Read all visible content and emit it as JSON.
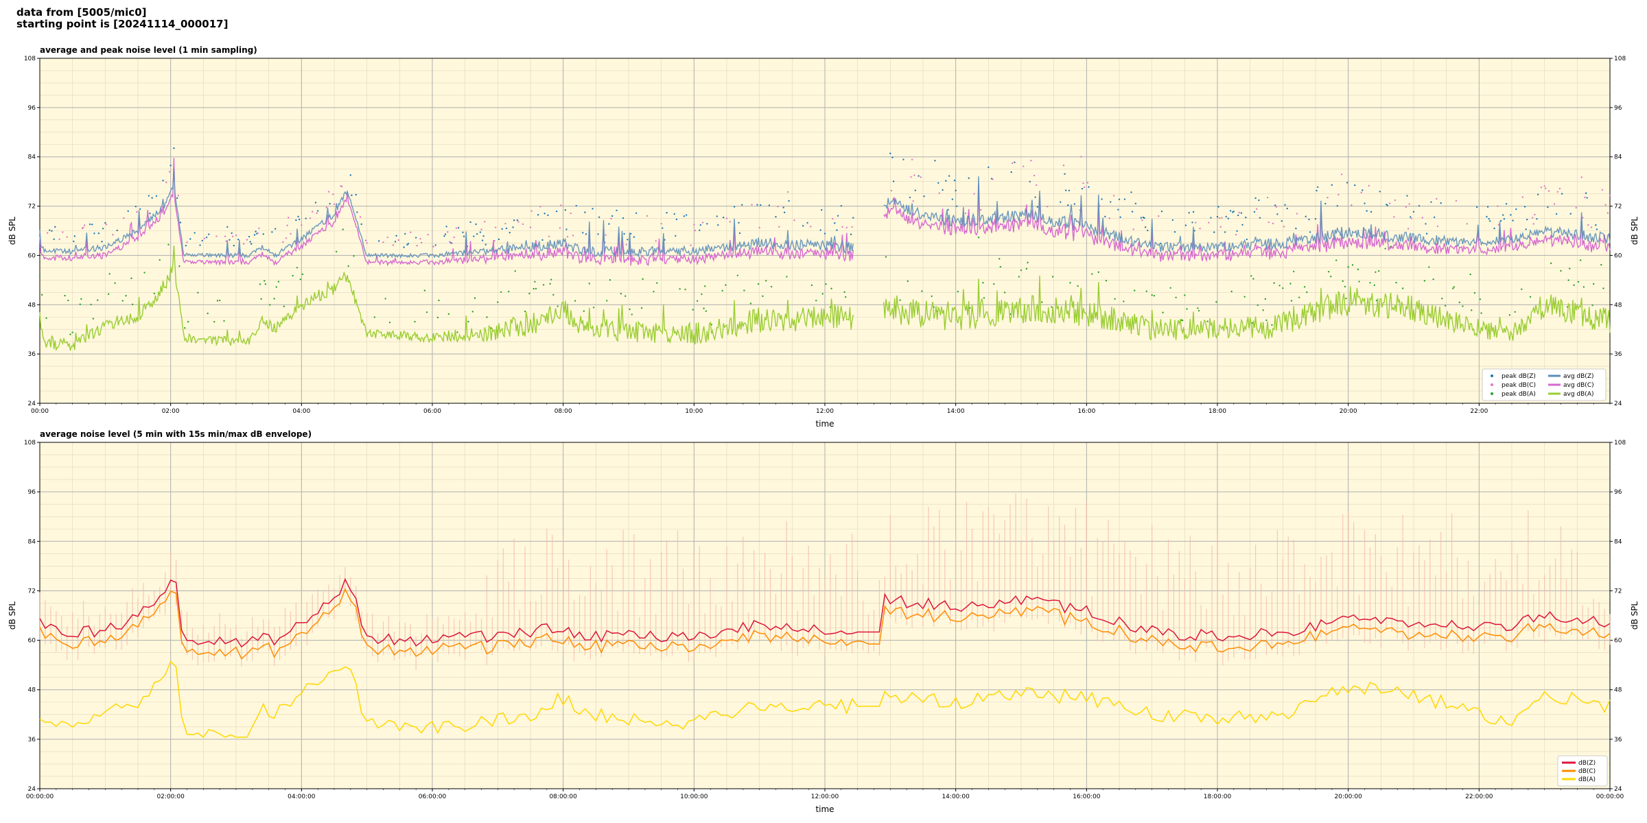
{
  "header": {
    "line1": "data from [5005/mic0]",
    "line2": "starting point is [20241114_000017]"
  },
  "chart_data": [
    {
      "type": "scatter+line",
      "title": "average and peak noise level (1 min sampling)",
      "xlabel": "time",
      "ylabel": "dB SPL",
      "ylim": [
        24,
        108
      ],
      "yticks": [
        24,
        36,
        48,
        60,
        72,
        84,
        96,
        108
      ],
      "xrange_hours": [
        0,
        24
      ],
      "xticks": [
        "00:00",
        "02:00",
        "04:00",
        "06:00",
        "08:00",
        "10:00",
        "12:00",
        "14:00",
        "16:00",
        "18:00",
        "20:00",
        "22:00"
      ],
      "grid": true,
      "legend_position": "lower-right",
      "colors": {
        "peak_z": "#1f77b4",
        "peak_c": "#e377c2",
        "peak_a": "#2ca02c",
        "avg_z": "#5b8db8",
        "avg_c": "#d669d0",
        "avg_a": "#9acd32",
        "background": "#fff8dc"
      },
      "legend": [
        "peak dB(Z)",
        "peak dB(C)",
        "peak dB(A)",
        "avg dB(Z)",
        "avg dB(C)",
        "avg dB(A)"
      ],
      "gap_hours": [
        12.45,
        12.9
      ],
      "profile": {
        "hours": [
          0.0,
          0.1,
          0.5,
          1.0,
          1.5,
          1.9,
          2.05,
          2.2,
          3.0,
          3.2,
          3.4,
          3.6,
          4.0,
          4.5,
          4.7,
          5.0,
          6.0,
          6.8,
          7.5,
          8.0,
          8.3,
          10.0,
          11.0,
          12.4,
          12.9,
          14.0,
          15.0,
          16.0,
          17.0,
          18.0,
          19.0,
          19.5,
          20.0,
          21.0,
          22.0,
          22.5,
          23.0,
          24.0
        ],
        "avg_z": [
          62,
          61,
          61,
          62,
          66,
          72,
          77,
          60,
          60,
          60,
          62,
          60,
          64,
          70,
          76,
          60,
          60,
          61,
          62,
          63,
          61,
          61,
          63,
          62,
          73,
          68,
          70,
          67,
          62,
          62,
          63,
          64,
          66,
          64,
          63,
          64,
          66,
          64
        ],
        "avg_a": [
          42,
          39,
          38,
          43,
          45,
          52,
          58,
          40,
          39,
          39,
          44,
          42,
          48,
          52,
          55,
          41,
          40,
          41,
          43,
          47,
          42,
          41,
          44,
          45,
          47,
          45,
          47,
          46,
          42,
          42,
          43,
          46,
          49,
          47,
          42,
          41,
          48,
          44
        ],
        "noise": [
          0.35,
          0.35,
          0.35,
          0.35,
          0.35,
          0.35,
          0.35,
          0.25,
          0.25,
          0.25,
          0.25,
          0.35,
          0.35,
          0.35,
          0.35,
          0.25,
          0.25,
          0.45,
          0.6,
          0.6,
          0.6,
          0.6,
          0.7,
          0.7,
          0.8,
          0.8,
          0.8,
          0.75,
          0.6,
          0.6,
          0.7,
          0.7,
          0.8,
          0.7,
          0.5,
          0.5,
          0.7,
          0.7
        ]
      }
    },
    {
      "type": "line",
      "title": "average noise level (5 min with 15s min/max dB envelope)",
      "xlabel": "time",
      "ylabel": "dB SPL",
      "ylim": [
        24,
        108
      ],
      "yticks": [
        24,
        36,
        48,
        60,
        72,
        84,
        96,
        108
      ],
      "xrange_hours": [
        0,
        24
      ],
      "xticks": [
        "00:00:00",
        "02:00:00",
        "04:00:00",
        "06:00:00",
        "08:00:00",
        "10:00:00",
        "12:00:00",
        "14:00:00",
        "16:00:00",
        "18:00:00",
        "20:00:00",
        "22:00:00",
        "00:00:00"
      ],
      "grid": true,
      "legend_position": "lower-right",
      "colors": {
        "z": "#dc143c",
        "c": "#ff8c00",
        "a": "#ffd700",
        "envelope": "#f4b8a8",
        "background": "#fff8dc"
      },
      "legend": [
        "dB(Z)",
        "dB(C)",
        "dB(A)"
      ],
      "flat_segment_hours": [
        12.45,
        12.9
      ],
      "profile": {
        "hours": [
          0.0,
          0.1,
          0.5,
          1.0,
          1.5,
          1.9,
          2.05,
          2.2,
          3.0,
          3.2,
          3.4,
          3.6,
          4.0,
          4.5,
          4.7,
          5.0,
          6.0,
          6.8,
          7.5,
          8.0,
          8.3,
          10.0,
          11.0,
          12.4,
          12.9,
          14.0,
          15.0,
          16.0,
          17.0,
          18.0,
          19.0,
          19.5,
          20.0,
          21.0,
          22.0,
          22.5,
          23.0,
          24.0
        ],
        "z": [
          64,
          63,
          62,
          62,
          66,
          72,
          77,
          60,
          59,
          60,
          62,
          60,
          64,
          70,
          76,
          60,
          60,
          61,
          62,
          63,
          61,
          61,
          64,
          62,
          70,
          68,
          70,
          67,
          62,
          61,
          62,
          63,
          66,
          64,
          63,
          64,
          66,
          64
        ],
        "a": [
          42,
          40,
          38,
          42,
          45,
          52,
          58,
          38,
          37,
          38,
          44,
          42,
          48,
          52,
          55,
          40,
          39,
          40,
          42,
          46,
          42,
          40,
          44,
          44,
          46,
          45,
          47,
          46,
          42,
          41,
          42,
          45,
          49,
          47,
          42,
          39,
          47,
          44
        ]
      }
    }
  ]
}
